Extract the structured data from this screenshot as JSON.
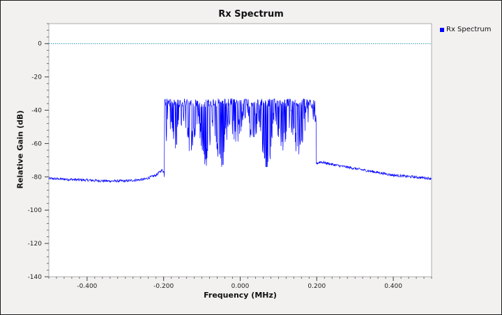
{
  "window": {
    "frame_color": "#f2f1f0",
    "plot_background": "#ffffff"
  },
  "chart_data": {
    "type": "line",
    "title": "Rx Spectrum",
    "xlabel": "Frequency (MHz)",
    "ylabel": "Relative Gain (dB)",
    "xlim": [
      -0.5,
      0.5
    ],
    "ylim": [
      -140,
      12
    ],
    "grid": false,
    "legend_position": "right",
    "x_ticks": [
      -0.4,
      -0.2,
      0.0,
      0.2,
      0.4
    ],
    "x_tick_labels": [
      "-0.400",
      "-0.200",
      "0.000",
      "0.200",
      "0.400"
    ],
    "y_ticks": [
      0,
      -20,
      -40,
      -60,
      -80,
      -100,
      -120,
      -140
    ],
    "y_tick_labels": [
      "0",
      "-20",
      "-40",
      "-60",
      "-80",
      "-100",
      "-120",
      "-140"
    ],
    "reference_line": {
      "y": 0,
      "color": "#2a8fb0",
      "style": "dotted"
    },
    "series": [
      {
        "name": "Rx Spectrum",
        "color": "#0000ff",
        "description_of_shape": "noise floor ~-82 dB outside occupied band, occupied band -0.197 to 0.197 MHz with peaks ~-33 dB and dips to ~-73 dB",
        "x": [
          -0.5,
          -0.45,
          -0.4,
          -0.35,
          -0.3,
          -0.25,
          -0.22,
          -0.205,
          -0.199,
          -0.198,
          -0.19,
          -0.17,
          -0.15,
          -0.13,
          -0.11,
          -0.09,
          -0.07,
          -0.05,
          -0.03,
          -0.01,
          0.01,
          0.03,
          0.05,
          0.07,
          0.09,
          0.11,
          0.13,
          0.15,
          0.17,
          0.19,
          0.198,
          0.199,
          0.21,
          0.25,
          0.3,
          0.35,
          0.4,
          0.45,
          0.5
        ],
        "values": [
          -81,
          -81.5,
          -82,
          -82.5,
          -82.5,
          -81.5,
          -79,
          -76,
          -77,
          -82,
          -34,
          -50,
          -36,
          -55,
          -38,
          -63,
          -35,
          -70,
          -37,
          -48,
          -34,
          -45,
          -38,
          -72,
          -35,
          -52,
          -36,
          -58,
          -40,
          -34,
          -33,
          -72,
          -71,
          -73,
          -75,
          -77,
          -79,
          -80,
          -81
        ]
      }
    ]
  }
}
